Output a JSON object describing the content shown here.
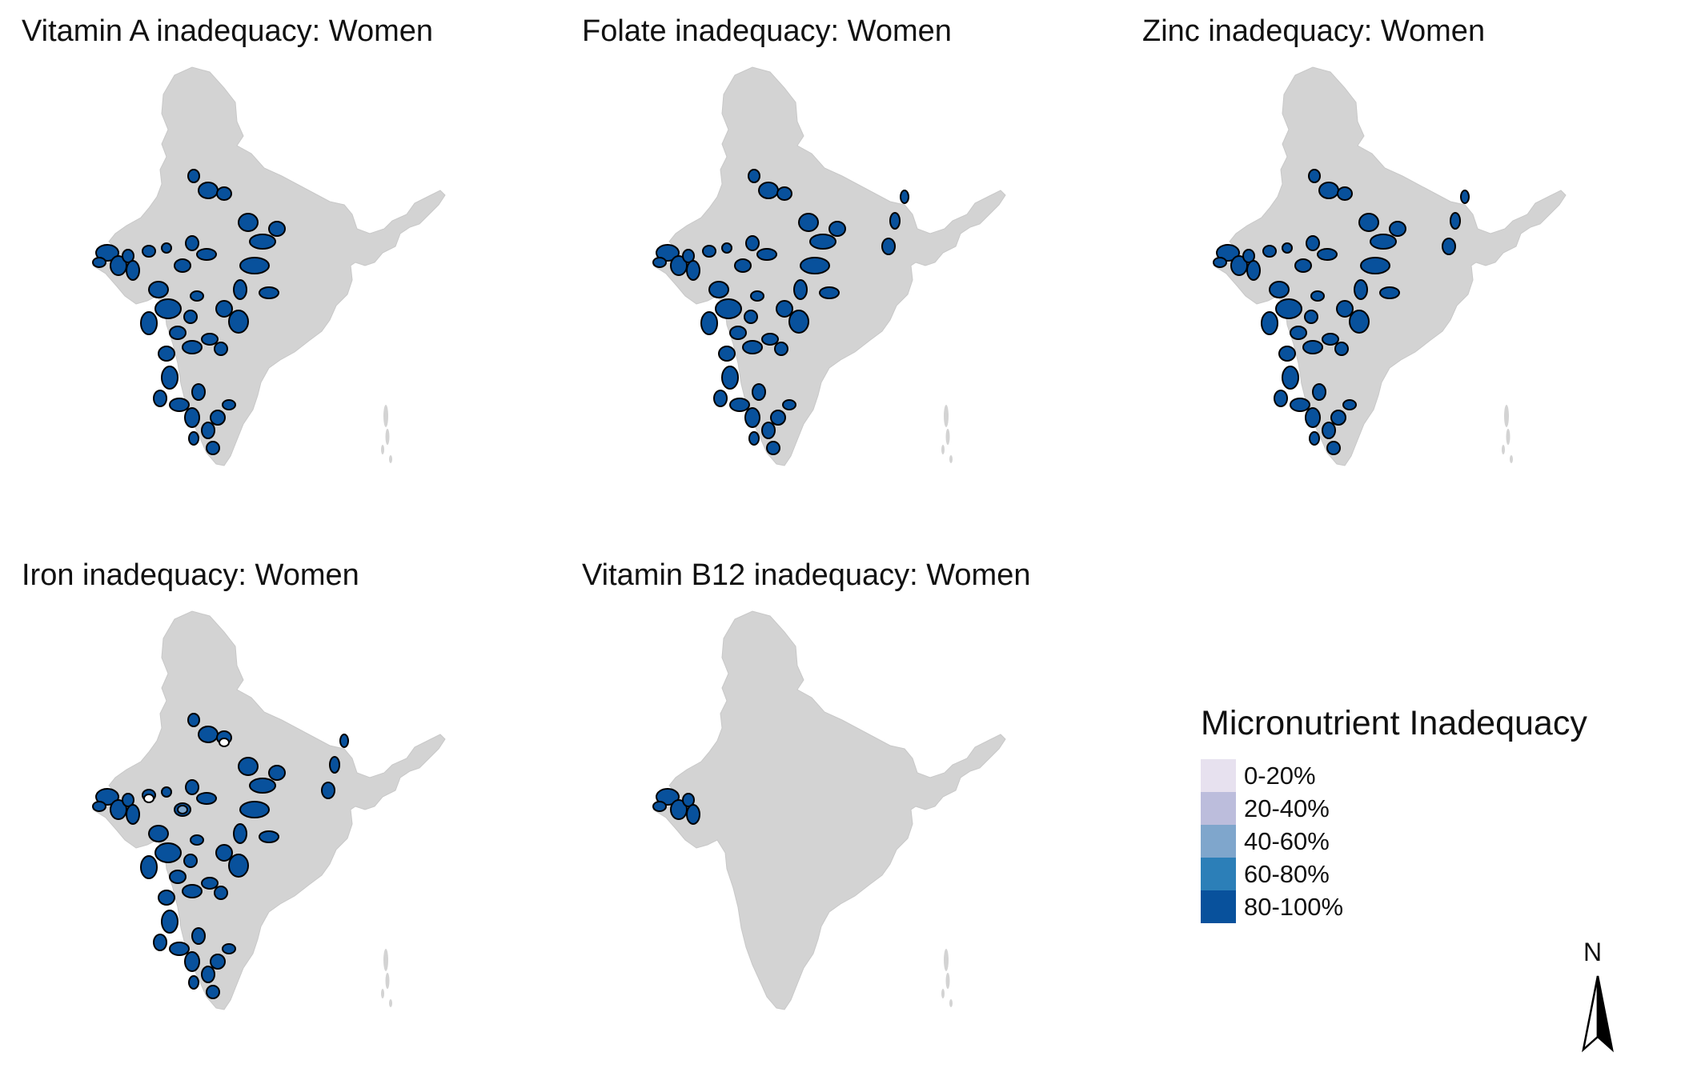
{
  "colors": {
    "land": "#d3d3d3",
    "border": "#000000",
    "c0_20": "#e7e1ef",
    "c20_40": "#bcbddc",
    "c40_60": "#7fa6cc",
    "c60_80": "#2c7fb8",
    "c80_100": "#08519c"
  },
  "panels": [
    {
      "title": "Vitamin A inadequacy: Women",
      "highlight": "full"
    },
    {
      "title": "Folate inadequacy: Women",
      "highlight": "full-east"
    },
    {
      "title": "Zinc inadequacy: Women",
      "highlight": "full-east"
    },
    {
      "title": "Iron inadequacy: Women",
      "highlight": "iron"
    },
    {
      "title": "Vitamin B12 inadequacy: Women",
      "highlight": "gujarat"
    }
  ],
  "legend": {
    "title": "Micronutrient Inadequacy",
    "items": [
      {
        "label": "0-20%",
        "color": "#e7e1ef"
      },
      {
        "label": "20-40%",
        "color": "#bcbddc"
      },
      {
        "label": "40-60%",
        "color": "#7fa6cc"
      },
      {
        "label": "60-80%",
        "color": "#2c7fb8"
      },
      {
        "label": "80-100%",
        "color": "#08519c"
      }
    ]
  },
  "north_arrow": {
    "label": "N"
  }
}
